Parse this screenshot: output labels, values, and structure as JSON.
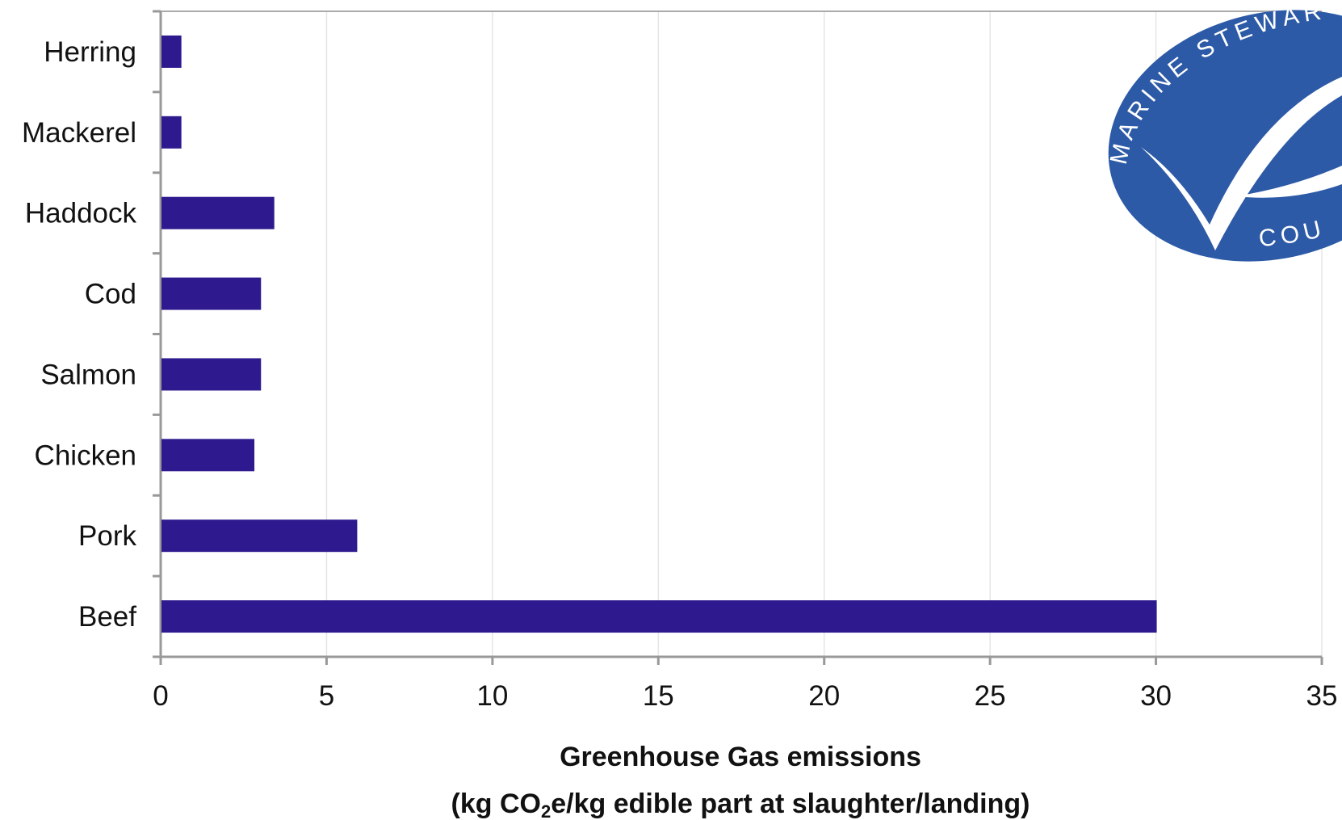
{
  "chart_data": {
    "type": "bar",
    "orientation": "horizontal",
    "categories": [
      "Herring",
      "Mackerel",
      "Haddock",
      "Cod",
      "Salmon",
      "Chicken",
      "Pork",
      "Beef"
    ],
    "values": [
      0.6,
      0.6,
      3.4,
      3.0,
      3.0,
      2.8,
      5.9,
      30.0
    ],
    "xlabel_line1": "Greenhouse Gas emissions",
    "xlabel_line2_before": "(kg CO",
    "xlabel_line2_sub": "2",
    "xlabel_line2_after": "e/kg edible part at slaughter/landing)",
    "xlim": [
      0,
      35
    ],
    "xticks": [
      "0",
      "5",
      "10",
      "15",
      "20",
      "25",
      "30",
      "35"
    ],
    "grid": true,
    "bar_color": "#2e1a8e"
  },
  "logo": {
    "text_top": "MARINE STEWAR",
    "text_bottom": "COU",
    "color": "#2d5aa6"
  }
}
